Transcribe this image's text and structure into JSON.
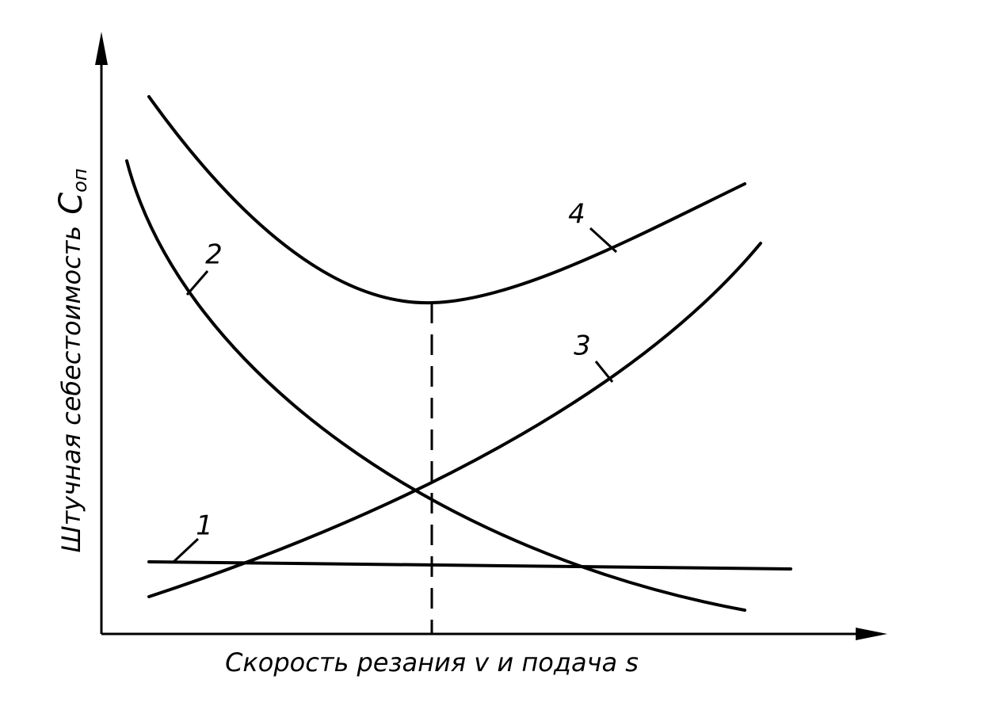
{
  "axes": {
    "y_label": "Штучная себестоимость",
    "y_symbol": "C",
    "y_symbol_subscript": "оп",
    "x_label": "Скорость резания v и подача s"
  },
  "curves": [
    {
      "label": "1"
    },
    {
      "label": "2"
    },
    {
      "label": "3"
    },
    {
      "label": "4"
    }
  ]
}
